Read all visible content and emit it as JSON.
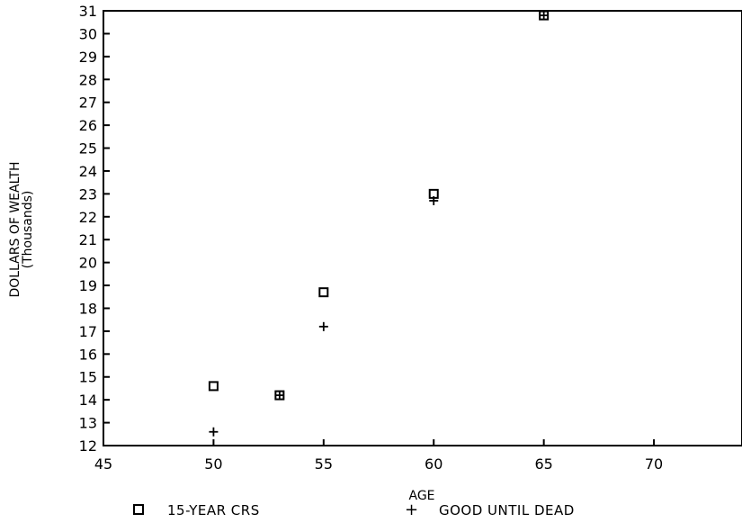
{
  "chart_data": {
    "type": "scatter",
    "xlabel": "AGE",
    "ylabel": "DOLLARS OF WEALTH",
    "ylabel_sub": "(Thousands)",
    "xlim": [
      45,
      74
    ],
    "ylim": [
      12,
      31
    ],
    "xticks": [
      45,
      50,
      55,
      60,
      65,
      70
    ],
    "yticks": [
      12,
      13,
      14,
      15,
      16,
      17,
      18,
      19,
      20,
      21,
      22,
      23,
      24,
      25,
      26,
      27,
      28,
      29,
      30,
      31
    ],
    "grid": false,
    "legend_position": "bottom",
    "series": [
      {
        "name": "15-YEAR CRS",
        "marker": "square",
        "x": [
          50,
          53,
          55,
          60,
          65
        ],
        "y": [
          14.6,
          14.2,
          18.7,
          23.0,
          30.8
        ]
      },
      {
        "name": "GOOD UNTIL DEAD",
        "marker": "plus",
        "x": [
          50,
          53,
          55,
          60,
          65
        ],
        "y": [
          12.6,
          14.2,
          17.2,
          22.7,
          30.8
        ]
      }
    ]
  },
  "legend": {
    "items": [
      {
        "label": "15-YEAR CRS"
      },
      {
        "label": "GOOD UNTIL DEAD"
      }
    ]
  }
}
